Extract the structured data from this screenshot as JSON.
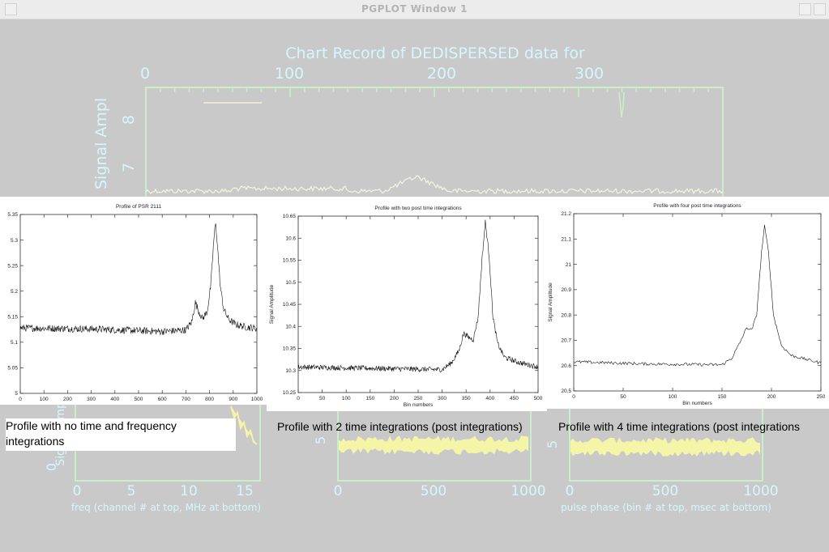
{
  "window": {
    "title": "PGPLOT Window 1"
  },
  "background_plot": {
    "title": "Chart Record of DEDISPERSED data for",
    "top_axis_ticks": [
      "0",
      "100",
      "200",
      "300"
    ],
    "y_label": "Signal Ampl",
    "y_ticks": [
      "8",
      "7"
    ],
    "lower_left": {
      "y_label": "Signal Ampl",
      "y_ticks": [
        "0"
      ],
      "x_ticks": [
        "0",
        "5",
        "10",
        "15"
      ],
      "x_label": "freq (channel # at top, MHz at bottom)"
    },
    "lower_middle": {
      "y_ticks": [
        "5"
      ],
      "x_ticks": [
        "0",
        "500",
        "1000"
      ]
    },
    "lower_right": {
      "y_ticks": [
        "5"
      ],
      "x_ticks": [
        "0",
        "500",
        "1000"
      ],
      "x_label": "pulse phase (bin # at top, msec at bottom)"
    },
    "colors": {
      "background": "#c9c9c9",
      "axis": "#c8f0c8",
      "label": "#d4f7ff",
      "trace": "#f5f5a8"
    }
  },
  "captions": {
    "left": "Profile with no time and frequency integrations",
    "middle": "Profile with 2 time integrations (post integrations)",
    "right": "Profile with 4 time integrations (post integrations"
  },
  "chart_data": [
    {
      "type": "line",
      "title": "Profile of PSR 2111",
      "xlabel": "",
      "ylabel": "",
      "xlim": [
        0,
        1000
      ],
      "ylim": [
        5.0,
        5.35
      ],
      "xticks": [
        "0",
        "100",
        "200",
        "300",
        "400",
        "500",
        "600",
        "700",
        "800",
        "900",
        "1000"
      ],
      "yticks": [
        "5",
        "5.05",
        "5.1",
        "5.15",
        "5.2",
        "5.25",
        "5.3",
        "5.35"
      ],
      "baseline": 5.125,
      "noise": 0.007,
      "points": [
        [
          0,
          5.128
        ],
        [
          300,
          5.126
        ],
        [
          600,
          5.121
        ],
        [
          700,
          5.124
        ],
        [
          725,
          5.14
        ],
        [
          740,
          5.178
        ],
        [
          755,
          5.16
        ],
        [
          770,
          5.146
        ],
        [
          790,
          5.16
        ],
        [
          805,
          5.21
        ],
        [
          818,
          5.3
        ],
        [
          825,
          5.333
        ],
        [
          832,
          5.3
        ],
        [
          845,
          5.21
        ],
        [
          860,
          5.165
        ],
        [
          880,
          5.145
        ],
        [
          910,
          5.135
        ],
        [
          950,
          5.13
        ],
        [
          1000,
          5.127
        ]
      ]
    },
    {
      "type": "line",
      "title": "Profile with two post time integrations",
      "xlabel": "Bin numbers",
      "ylabel": "Signal Amplitude",
      "xlim": [
        0,
        500
      ],
      "ylim": [
        10.25,
        10.65
      ],
      "xticks": [
        "0",
        "50",
        "100",
        "150",
        "200",
        "250",
        "300",
        "350",
        "400",
        "450",
        "500"
      ],
      "yticks": [
        "10.25",
        "10.3",
        "10.35",
        "10.4",
        "10.45",
        "10.5",
        "10.55",
        "10.6",
        "10.65"
      ],
      "baseline": 10.305,
      "noise": 0.006,
      "points": [
        [
          0,
          10.308
        ],
        [
          150,
          10.305
        ],
        [
          300,
          10.302
        ],
        [
          320,
          10.318
        ],
        [
          335,
          10.345
        ],
        [
          345,
          10.385
        ],
        [
          355,
          10.375
        ],
        [
          365,
          10.37
        ],
        [
          375,
          10.42
        ],
        [
          383,
          10.55
        ],
        [
          390,
          10.637
        ],
        [
          398,
          10.56
        ],
        [
          406,
          10.42
        ],
        [
          416,
          10.36
        ],
        [
          430,
          10.33
        ],
        [
          460,
          10.318
        ],
        [
          500,
          10.308
        ]
      ]
    },
    {
      "type": "line",
      "title": "Profile with four post time integrations",
      "xlabel": "Bin numbers",
      "ylabel": "Signal Amplitude",
      "xlim": [
        0,
        250
      ],
      "ylim": [
        20.5,
        21.2
      ],
      "xticks": [
        "0",
        "50",
        "100",
        "150",
        "200",
        "250"
      ],
      "yticks": [
        "20.5",
        "20.6",
        "20.7",
        "20.8",
        "20.9",
        "21",
        "21.1",
        "21.2"
      ],
      "baseline": 20.61,
      "noise": 0.006,
      "points": [
        [
          0,
          20.615
        ],
        [
          70,
          20.607
        ],
        [
          150,
          20.603
        ],
        [
          160,
          20.63
        ],
        [
          168,
          20.69
        ],
        [
          175,
          20.75
        ],
        [
          180,
          20.74
        ],
        [
          185,
          20.8
        ],
        [
          190,
          21.05
        ],
        [
          193,
          21.15
        ],
        [
          197,
          21.05
        ],
        [
          202,
          20.8
        ],
        [
          210,
          20.68
        ],
        [
          220,
          20.64
        ],
        [
          235,
          20.625
        ],
        [
          250,
          20.61
        ]
      ]
    }
  ]
}
